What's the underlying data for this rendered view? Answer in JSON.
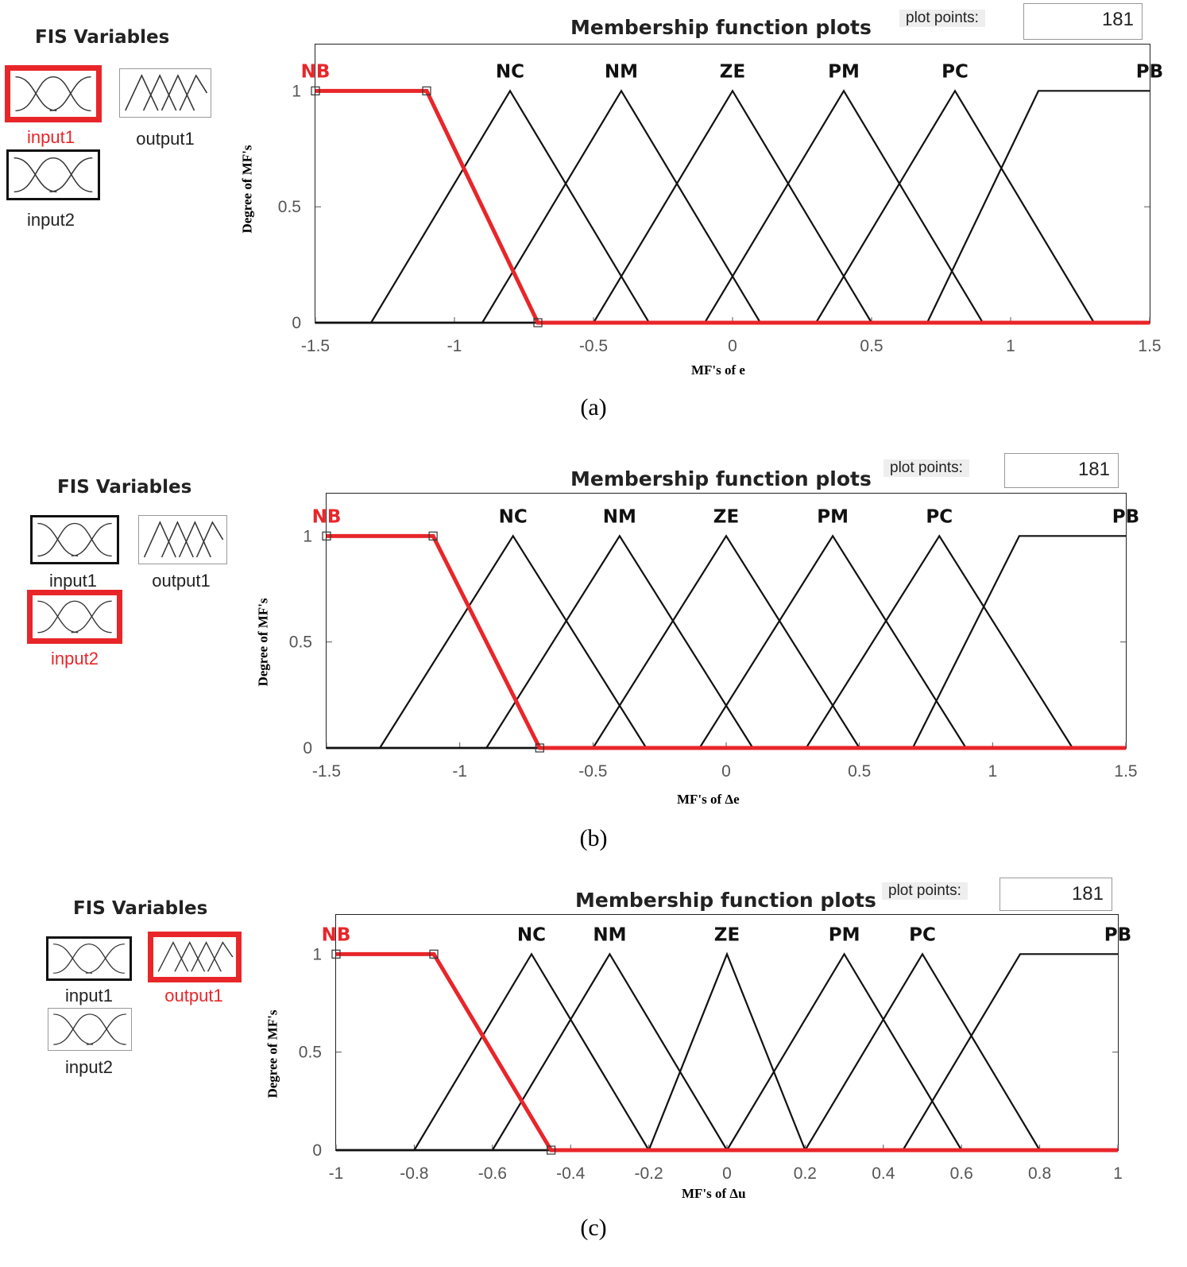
{
  "panels": [
    {
      "id": "a",
      "fis_title": "FIS Variables",
      "variables": [
        {
          "name": "input1",
          "selected": true,
          "kind": "input"
        },
        {
          "name": "output1",
          "selected": false,
          "kind": "output"
        },
        {
          "name": "input2",
          "selected": false,
          "kind": "input"
        }
      ],
      "plot_title": "Membership function plots",
      "plot_points_label": "plot points:",
      "plot_points_value": "181",
      "caption": "(a)",
      "chart_data": {
        "type": "line",
        "xlabel": "MF's of e",
        "ylabel": "Degree of MF's",
        "xlim": [
          -1.5,
          1.5
        ],
        "ylim": [
          0,
          1.2
        ],
        "xticks": [
          -1.5,
          -1,
          -0.5,
          0,
          0.5,
          1,
          1.5
        ],
        "xtick_labels": [
          "-1.5",
          "-1",
          "-0.5",
          "0",
          "0.5",
          "1",
          "1.5"
        ],
        "yticks": [
          0,
          0.5,
          1
        ],
        "ytick_labels": [
          "0",
          "0.5",
          "1"
        ],
        "highlight_color": "#e8262a",
        "mfs": [
          {
            "name": "NB",
            "type": "trapmf",
            "params": [
              -1.5,
              -1.5,
              -1.1,
              -0.7
            ],
            "selected": true
          },
          {
            "name": "NC",
            "type": "trimf",
            "params": [
              -1.3,
              -0.8,
              -0.3
            ]
          },
          {
            "name": "NM",
            "type": "trimf",
            "params": [
              -0.9,
              -0.4,
              0.1
            ]
          },
          {
            "name": "ZE",
            "type": "trimf",
            "params": [
              -0.5,
              0,
              0.5
            ]
          },
          {
            "name": "PM",
            "type": "trimf",
            "params": [
              -0.1,
              0.4,
              0.9
            ]
          },
          {
            "name": "PC",
            "type": "trimf",
            "params": [
              0.3,
              0.8,
              1.3
            ]
          },
          {
            "name": "PB",
            "type": "trapmf",
            "params": [
              0.7,
              1.1,
              1.5,
              1.5
            ]
          }
        ]
      }
    },
    {
      "id": "b",
      "fis_title": "FIS Variables",
      "variables": [
        {
          "name": "input1",
          "selected": false,
          "kind": "input"
        },
        {
          "name": "output1",
          "selected": false,
          "kind": "output"
        },
        {
          "name": "input2",
          "selected": true,
          "kind": "input"
        }
      ],
      "plot_title": "Membership function plots",
      "plot_points_label": "plot points:",
      "plot_points_value": "181",
      "caption": "(b)",
      "chart_data": {
        "type": "line",
        "xlabel": "MF's of Δe",
        "ylabel": "Degree of MF's",
        "xlim": [
          -1.5,
          1.5
        ],
        "ylim": [
          0,
          1.2
        ],
        "xticks": [
          -1.5,
          -1,
          -0.5,
          0,
          0.5,
          1,
          1.5
        ],
        "xtick_labels": [
          "-1.5",
          "-1",
          "-0.5",
          "0",
          "0.5",
          "1",
          "1.5"
        ],
        "yticks": [
          0,
          0.5,
          1
        ],
        "ytick_labels": [
          "0",
          "0.5",
          "1"
        ],
        "highlight_color": "#e8262a",
        "mfs": [
          {
            "name": "NB",
            "type": "trapmf",
            "params": [
              -1.5,
              -1.5,
              -1.1,
              -0.7
            ],
            "selected": true
          },
          {
            "name": "NC",
            "type": "trimf",
            "params": [
              -1.3,
              -0.8,
              -0.3
            ]
          },
          {
            "name": "NM",
            "type": "trimf",
            "params": [
              -0.9,
              -0.4,
              0.1
            ]
          },
          {
            "name": "ZE",
            "type": "trimf",
            "params": [
              -0.5,
              0,
              0.5
            ]
          },
          {
            "name": "PM",
            "type": "trimf",
            "params": [
              -0.1,
              0.4,
              0.9
            ]
          },
          {
            "name": "PC",
            "type": "trimf",
            "params": [
              0.3,
              0.8,
              1.3
            ]
          },
          {
            "name": "PB",
            "type": "trapmf",
            "params": [
              0.7,
              1.1,
              1.5,
              1.5
            ]
          }
        ]
      }
    },
    {
      "id": "c",
      "fis_title": "FIS Variables",
      "variables": [
        {
          "name": "input1",
          "selected": false,
          "kind": "input"
        },
        {
          "name": "output1",
          "selected": true,
          "kind": "output"
        },
        {
          "name": "input2",
          "selected": false,
          "kind": "input"
        }
      ],
      "plot_title": "Membership function plots",
      "plot_points_label": "plot points:",
      "plot_points_value": "181",
      "caption": "(c)",
      "chart_data": {
        "type": "line",
        "xlabel": "MF's of Δu",
        "ylabel": "Degree of MF's",
        "xlim": [
          -1,
          1
        ],
        "ylim": [
          0,
          1.2
        ],
        "xticks": [
          -1,
          -0.8,
          -0.6,
          -0.4,
          -0.2,
          0,
          0.2,
          0.4,
          0.6,
          0.8,
          1
        ],
        "xtick_labels": [
          "-1",
          "-0.8",
          "-0.6",
          "-0.4",
          "-0.2",
          "0",
          "0.2",
          "0.4",
          "0.6",
          "0.8",
          "1"
        ],
        "yticks": [
          0,
          0.5,
          1
        ],
        "ytick_labels": [
          "0",
          "0.5",
          "1"
        ],
        "highlight_color": "#e8262a",
        "mfs": [
          {
            "name": "NB",
            "type": "trapmf",
            "params": [
              -1,
              -1,
              -0.75,
              -0.45
            ],
            "selected": true
          },
          {
            "name": "NC",
            "type": "trimf",
            "params": [
              -0.8,
              -0.5,
              -0.2
            ]
          },
          {
            "name": "NM",
            "type": "trimf",
            "params": [
              -0.6,
              -0.3,
              0
            ]
          },
          {
            "name": "ZE",
            "type": "trimf",
            "params": [
              -0.2,
              0,
              0.2
            ]
          },
          {
            "name": "PM",
            "type": "trimf",
            "params": [
              0,
              0.3,
              0.6
            ]
          },
          {
            "name": "PC",
            "type": "trimf",
            "params": [
              0.2,
              0.5,
              0.8
            ]
          },
          {
            "name": "PB",
            "type": "trapmf",
            "params": [
              0.45,
              0.75,
              1,
              1
            ]
          }
        ]
      }
    }
  ]
}
